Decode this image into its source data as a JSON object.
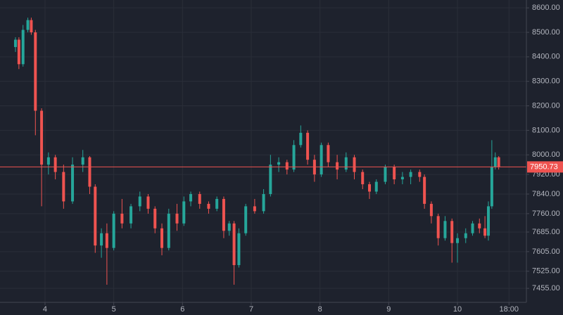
{
  "chart_data": {
    "type": "candlestick",
    "x": [
      3.57,
      3.62,
      3.68,
      3.75,
      3.8,
      3.86,
      3.95,
      4.05,
      4.15,
      4.27,
      4.4,
      4.55,
      4.65,
      4.73,
      4.82,
      4.9,
      5.0,
      5.12,
      5.25,
      5.38,
      5.5,
      5.6,
      5.7,
      5.8,
      5.92,
      6.02,
      6.12,
      6.25,
      6.38,
      6.5,
      6.6,
      6.68,
      6.75,
      6.82,
      6.92,
      7.05,
      7.18,
      7.28,
      7.4,
      7.52,
      7.62,
      7.72,
      7.82,
      7.92,
      8.02,
      8.12,
      8.25,
      8.38,
      8.5,
      8.62,
      8.72,
      8.82,
      8.95,
      9.08,
      9.2,
      9.32,
      9.45,
      9.52,
      9.62,
      9.72,
      9.82,
      9.92,
      10.0,
      10.12,
      10.22,
      10.32,
      10.4,
      10.45,
      10.5,
      10.55,
      10.6
    ],
    "open": [
      8440,
      8470,
      8370,
      8510,
      8550,
      8500,
      8180,
      7960,
      7990,
      7930,
      7810,
      7960,
      7990,
      7870,
      7630,
      7680,
      7620,
      7760,
      7720,
      7790,
      7830,
      7780,
      7700,
      7620,
      7760,
      7720,
      7810,
      7840,
      7800,
      7780,
      7820,
      7690,
      7720,
      7550,
      7680,
      7790,
      7770,
      7840,
      7960,
      7970,
      7940,
      8040,
      8090,
      7980,
      7920,
      8040,
      7970,
      7940,
      7990,
      7930,
      7880,
      7850,
      7890,
      7950,
      7900,
      7910,
      7930,
      7910,
      7800,
      7750,
      7660,
      7730,
      7640,
      7660,
      7680,
      7720,
      7700,
      7670,
      7790,
      7950,
      7990
    ],
    "high": [
      8480,
      8480,
      8530,
      8560,
      8560,
      8510,
      8190,
      8010,
      8000,
      7960,
      7990,
      8020,
      7995,
      7880,
      7700,
      7720,
      7770,
      7820,
      7800,
      7850,
      7840,
      7790,
      7720,
      7780,
      7800,
      7830,
      7850,
      7850,
      7810,
      7830,
      7830,
      7730,
      7730,
      7700,
      7800,
      7820,
      7860,
      8000,
      7990,
      7980,
      8060,
      8120,
      8100,
      8000,
      8050,
      8050,
      8000,
      8010,
      8000,
      7940,
      7890,
      7900,
      7960,
      7960,
      7930,
      7940,
      7940,
      7920,
      7810,
      7760,
      7750,
      7740,
      7680,
      7700,
      7730,
      7740,
      7750,
      7810,
      8060,
      8010,
      7995
    ],
    "low": [
      8420,
      8350,
      8360,
      8500,
      8490,
      8080,
      7790,
      7920,
      7900,
      7780,
      7800,
      7930,
      7840,
      7600,
      7580,
      7470,
      7610,
      7700,
      7700,
      7770,
      7760,
      7680,
      7590,
      7610,
      7690,
      7710,
      7790,
      7780,
      7760,
      7770,
      7660,
      7670,
      7470,
      7540,
      7670,
      7760,
      7760,
      7830,
      7930,
      7920,
      7930,
      8030,
      7960,
      7890,
      7910,
      7950,
      7900,
      7930,
      7900,
      7860,
      7820,
      7840,
      7880,
      7880,
      7880,
      7880,
      7890,
      7780,
      7720,
      7630,
      7650,
      7560,
      7560,
      7640,
      7670,
      7680,
      7660,
      7650,
      7780,
      7940,
      7940
    ],
    "close": [
      8470,
      8370,
      8510,
      8550,
      8500,
      8180,
      7960,
      7990,
      7930,
      7810,
      7960,
      7990,
      7870,
      7630,
      7680,
      7620,
      7760,
      7720,
      7790,
      7830,
      7780,
      7700,
      7620,
      7760,
      7720,
      7810,
      7840,
      7800,
      7780,
      7820,
      7690,
      7720,
      7550,
      7680,
      7790,
      7770,
      7840,
      7960,
      7970,
      7940,
      8040,
      8090,
      7980,
      7920,
      8040,
      7970,
      7940,
      7990,
      7930,
      7880,
      7850,
      7890,
      7950,
      7900,
      7910,
      7930,
      7910,
      7800,
      7750,
      7660,
      7730,
      7640,
      7660,
      7680,
      7720,
      7700,
      7670,
      7790,
      7950,
      7990,
      7950
    ],
    "up_color": "#26a69a",
    "down_color": "#ef5350",
    "xlim": [
      3.345,
      11.003
    ],
    "xticks": [
      4,
      5,
      6,
      7,
      8,
      9,
      10,
      {
        "value": 10.75,
        "label": "18:00"
      }
    ],
    "ylim": [
      7398,
      8632
    ],
    "yticks": [
      {
        "value": 8600,
        "label": "8600.00"
      },
      {
        "value": 8500,
        "label": "8500.00"
      },
      {
        "value": 8400,
        "label": "8400.00"
      },
      {
        "value": 8300,
        "label": "8300.00"
      },
      {
        "value": 8200,
        "label": "8200.00"
      },
      {
        "value": 8100,
        "label": "8100.00"
      },
      {
        "value": 8000,
        "label": "8000.00"
      },
      {
        "value": 7920,
        "label": "7920.00"
      },
      {
        "value": 7840,
        "label": "7840.00"
      },
      {
        "value": 7760,
        "label": "7760.00"
      },
      {
        "value": 7685,
        "label": "7685.00"
      },
      {
        "value": 7605,
        "label": "7605.00"
      },
      {
        "value": 7525,
        "label": "7525.00"
      },
      {
        "value": 7455,
        "label": "7455.00"
      }
    ],
    "last_price": 7950.73,
    "last_price_color": "#ef5350",
    "grid": true
  }
}
